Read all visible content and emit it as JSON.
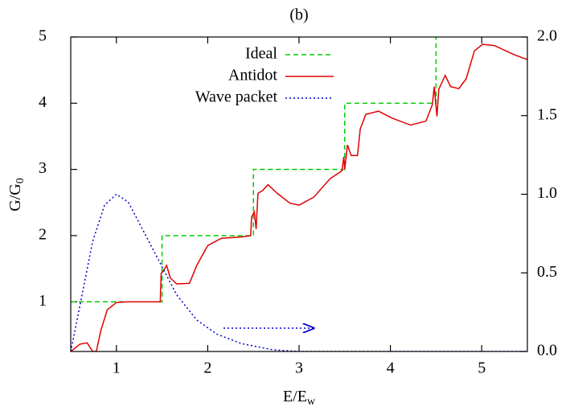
{
  "chart_data": {
    "type": "line",
    "title": "(b)",
    "xlabel": "E/E",
    "xlabel_sub": "w",
    "ylabel": "G/G",
    "ylabel_sub": "0",
    "xlim": [
      0.5,
      5.5
    ],
    "xticks": [
      1,
      2,
      3,
      4,
      5
    ],
    "ylim": [
      0.25,
      5
    ],
    "yticks": [
      1,
      2,
      3,
      4,
      5
    ],
    "y2lim": [
      0,
      2
    ],
    "y2ticks": [
      {
        "value": 0,
        "label": "0.0"
      },
      {
        "value": 0.5,
        "label": "0.5"
      },
      {
        "value": 1,
        "label": "1.0"
      },
      {
        "value": 1.5,
        "label": "1.5"
      },
      {
        "value": 2,
        "label": "2.0"
      }
    ],
    "legend": "top-left",
    "series": [
      {
        "name": "Ideal",
        "color": "#00cc00",
        "line_style": "dashed",
        "x": [
          0.5,
          1.5,
          1.5,
          2.5,
          2.5,
          3.5,
          3.5,
          4.5,
          4.5
        ],
        "values": [
          1,
          1,
          2,
          2,
          3,
          3,
          4,
          4,
          5
        ]
      },
      {
        "name": "Antidot",
        "color": "#e00000",
        "line_style": "solid",
        "x": [
          0.5,
          0.6,
          0.68,
          0.74,
          0.78,
          0.83,
          0.9,
          1.0,
          1.13,
          1.48,
          1.49,
          1.51,
          1.55,
          1.59,
          1.66,
          1.8,
          1.88,
          2.0,
          2.15,
          2.37,
          2.47,
          2.48,
          2.51,
          2.53,
          2.55,
          2.6,
          2.66,
          2.76,
          2.9,
          3.0,
          3.16,
          3.34,
          3.47,
          3.49,
          3.5,
          3.53,
          3.57,
          3.64,
          3.67,
          3.73,
          3.87,
          4.01,
          4.22,
          4.39,
          4.46,
          4.48,
          4.51,
          4.53,
          4.6,
          4.66,
          4.75,
          4.83,
          4.92,
          5.01,
          5.14,
          5.36,
          5.5
        ],
        "values": [
          0.25,
          0.36,
          0.38,
          0.25,
          0.25,
          0.57,
          0.88,
          0.99,
          1.0,
          1.0,
          1.43,
          1.46,
          1.55,
          1.36,
          1.27,
          1.28,
          1.55,
          1.85,
          1.96,
          1.98,
          2.0,
          2.28,
          2.36,
          2.1,
          2.64,
          2.68,
          2.77,
          2.64,
          2.49,
          2.46,
          2.58,
          2.86,
          2.98,
          3.19,
          3.0,
          3.37,
          3.21,
          3.21,
          3.61,
          3.83,
          3.88,
          3.78,
          3.67,
          3.73,
          3.98,
          4.25,
          3.8,
          4.21,
          4.42,
          4.25,
          4.22,
          4.37,
          4.79,
          4.89,
          4.87,
          4.73,
          4.66
        ]
      },
      {
        "name": "Wave packet",
        "color": "#0000cc",
        "line_style": "dotted",
        "axis": "y2",
        "x": [
          0.5,
          0.6,
          0.74,
          0.87,
          1.0,
          1.13,
          1.31,
          1.49,
          1.66,
          1.88,
          2.1,
          2.37,
          2.72,
          3.0,
          5.5
        ],
        "values": [
          0.0,
          0.29,
          0.7,
          0.93,
          1.0,
          0.95,
          0.75,
          0.55,
          0.36,
          0.2,
          0.11,
          0.05,
          0.01,
          0.0,
          0.0
        ]
      }
    ]
  }
}
